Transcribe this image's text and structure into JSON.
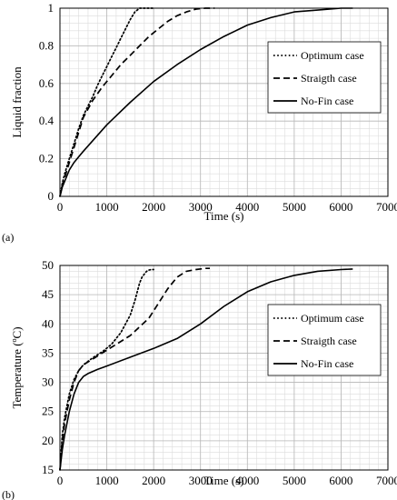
{
  "chart_data": [
    {
      "type": "line",
      "panel_label": "(a)",
      "xlabel": "Time (s)",
      "ylabel": "Liquid fraction",
      "xlim": [
        0,
        7000
      ],
      "ylim": [
        0,
        1
      ],
      "xticks": [
        0,
        1000,
        2000,
        3000,
        4000,
        5000,
        6000,
        7000
      ],
      "yticks": [
        0,
        0.2,
        0.4,
        0.6,
        0.8,
        1
      ],
      "ytick_labels": [
        "0",
        "0.2",
        "0.4",
        "0.6",
        "0.8",
        "1"
      ],
      "grid": true,
      "legend_position": "right",
      "series": [
        {
          "name": "Optimum case",
          "style": "dotted",
          "x": [
            0,
            50,
            100,
            200,
            300,
            400,
            500,
            600,
            700,
            800,
            900,
            1000,
            1100,
            1200,
            1300,
            1400,
            1500,
            1600,
            1700,
            1800,
            1900,
            2000
          ],
          "y": [
            0,
            0.07,
            0.12,
            0.2,
            0.28,
            0.36,
            0.43,
            0.48,
            0.53,
            0.59,
            0.64,
            0.69,
            0.74,
            0.79,
            0.84,
            0.89,
            0.94,
            0.98,
            1.0,
            1.0,
            1.0,
            1.0
          ]
        },
        {
          "name": "Straigth case",
          "style": "dashed",
          "x": [
            0,
            50,
            100,
            200,
            300,
            400,
            500,
            700,
            900,
            1100,
            1300,
            1500,
            1700,
            1900,
            2100,
            2300,
            2500,
            2700,
            2900,
            3100,
            3300
          ],
          "y": [
            0,
            0.06,
            0.1,
            0.18,
            0.26,
            0.34,
            0.42,
            0.51,
            0.58,
            0.64,
            0.7,
            0.75,
            0.8,
            0.85,
            0.89,
            0.93,
            0.96,
            0.98,
            0.995,
            1.0,
            1.0
          ]
        },
        {
          "name": "No-Fin case",
          "style": "solid",
          "x": [
            0,
            50,
            100,
            200,
            300,
            400,
            500,
            750,
            1000,
            1500,
            2000,
            2500,
            3000,
            3500,
            4000,
            4500,
            5000,
            5500,
            6000,
            6250
          ],
          "y": [
            0,
            0.05,
            0.08,
            0.14,
            0.18,
            0.21,
            0.24,
            0.31,
            0.38,
            0.5,
            0.61,
            0.7,
            0.78,
            0.85,
            0.91,
            0.95,
            0.98,
            0.99,
            1.0,
            1.0
          ]
        }
      ]
    },
    {
      "type": "line",
      "panel_label": "(b)",
      "xlabel": "Time (s)",
      "ylabel": "Temperature (ºC)",
      "xlim": [
        0,
        7000
      ],
      "ylim": [
        15,
        50
      ],
      "xticks": [
        0,
        1000,
        2000,
        3000,
        4000,
        5000,
        6000,
        7000
      ],
      "yticks": [
        15,
        20,
        25,
        30,
        35,
        40,
        45,
        50
      ],
      "ytick_labels": [
        "15",
        "20",
        "25",
        "30",
        "35",
        "40",
        "45",
        "50"
      ],
      "grid": true,
      "legend_position": "right",
      "series": [
        {
          "name": "Optimum case",
          "style": "dotted",
          "x": [
            0,
            50,
            100,
            200,
            300,
            400,
            500,
            700,
            900,
            1100,
            1300,
            1500,
            1600,
            1700,
            1750,
            1800,
            1850,
            1900,
            1950,
            2000
          ],
          "y": [
            15,
            21,
            24,
            28,
            30.5,
            32,
            33,
            34.2,
            35.2,
            36.5,
            38.5,
            41.5,
            44,
            47,
            48,
            48.5,
            49,
            49.2,
            49.3,
            49.3
          ]
        },
        {
          "name": "Straigth case",
          "style": "dashed",
          "x": [
            0,
            50,
            100,
            200,
            300,
            400,
            500,
            700,
            900,
            1100,
            1300,
            1500,
            1700,
            1900,
            2100,
            2300,
            2500,
            2700,
            2900,
            3100,
            3200
          ],
          "y": [
            15,
            20,
            23,
            27,
            30,
            32,
            33,
            34,
            35,
            36,
            37,
            38,
            39.5,
            41,
            43.5,
            46,
            48,
            49,
            49.3,
            49.5,
            49.5
          ]
        },
        {
          "name": "No-Fin case",
          "style": "solid",
          "x": [
            0,
            50,
            100,
            200,
            300,
            400,
            500,
            600,
            800,
            1000,
            1500,
            2000,
            2500,
            3000,
            3500,
            4000,
            4500,
            5000,
            5500,
            6000,
            6250
          ],
          "y": [
            15,
            18.5,
            21,
            25,
            28,
            30,
            31,
            31.5,
            32.2,
            32.8,
            34.3,
            35.8,
            37.5,
            40,
            43,
            45.5,
            47.2,
            48.3,
            49,
            49.3,
            49.4
          ]
        }
      ]
    }
  ]
}
